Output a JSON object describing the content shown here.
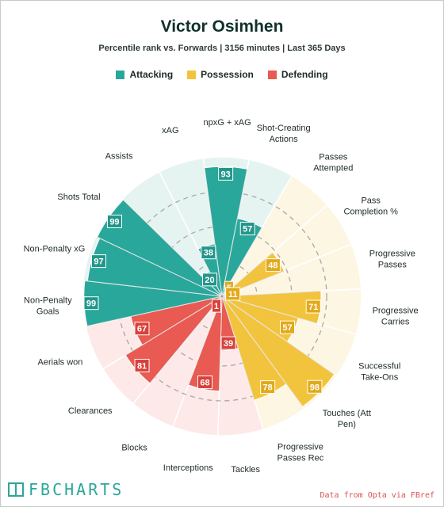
{
  "header": {
    "title": "Victor Osimhen",
    "subtitle": "Percentile rank vs. Forwards | 3156 minutes | Last 365 Days"
  },
  "legend": [
    {
      "label": "Attacking",
      "color": "#2aa79b"
    },
    {
      "label": "Possession",
      "color": "#f2c43d"
    },
    {
      "label": "Defending",
      "color": "#e85a52"
    }
  ],
  "footer": {
    "brand": "FBCHARTS",
    "source": "Data from Opta via FBref"
  },
  "colors": {
    "Attacking": {
      "fill": "#2aa79b",
      "bg": "#e6f4f1",
      "badge": "#23968b"
    },
    "Possession": {
      "fill": "#f2c43d",
      "bg": "#fdf6e3",
      "badge": "#e2a91a"
    },
    "Defending": {
      "fill": "#e85a52",
      "bg": "#fde9e7",
      "badge": "#d8413a"
    }
  },
  "chart_data": {
    "type": "polar-bar",
    "title": "Victor Osimhen",
    "subtitle": "Percentile rank vs. Forwards | 3156 minutes | Last 365 Days",
    "rlim": [
      0,
      100
    ],
    "grid": true,
    "legend_position": "top",
    "categories": [
      "npxG + xAG",
      "Shot-Creating Actions",
      "Passes Attempted",
      "Pass Completion %",
      "Progressive Passes",
      "Progressive Carries",
      "Successful Take-Ons",
      "Touches (Att Pen)",
      "Progressive Passes Rec",
      "Tackles",
      "Interceptions",
      "Blocks",
      "Clearances",
      "Aerials won",
      "Non-Penalty Goals",
      "Non-Penalty xG",
      "Shots Total",
      "Assists",
      "xAG"
    ],
    "groups": [
      "Attacking",
      "Attacking",
      "Possession",
      "Possession",
      "Possession",
      "Possession",
      "Possession",
      "Possession",
      "Possession",
      "Defending",
      "Defending",
      "Defending",
      "Defending",
      "Defending",
      "Attacking",
      "Attacking",
      "Attacking",
      "Attacking",
      "Attacking"
    ],
    "values": [
      93,
      57,
      5,
      48,
      11,
      71,
      57,
      98,
      78,
      39,
      68,
      1,
      81,
      67,
      99,
      97,
      99,
      20,
      38
    ]
  }
}
